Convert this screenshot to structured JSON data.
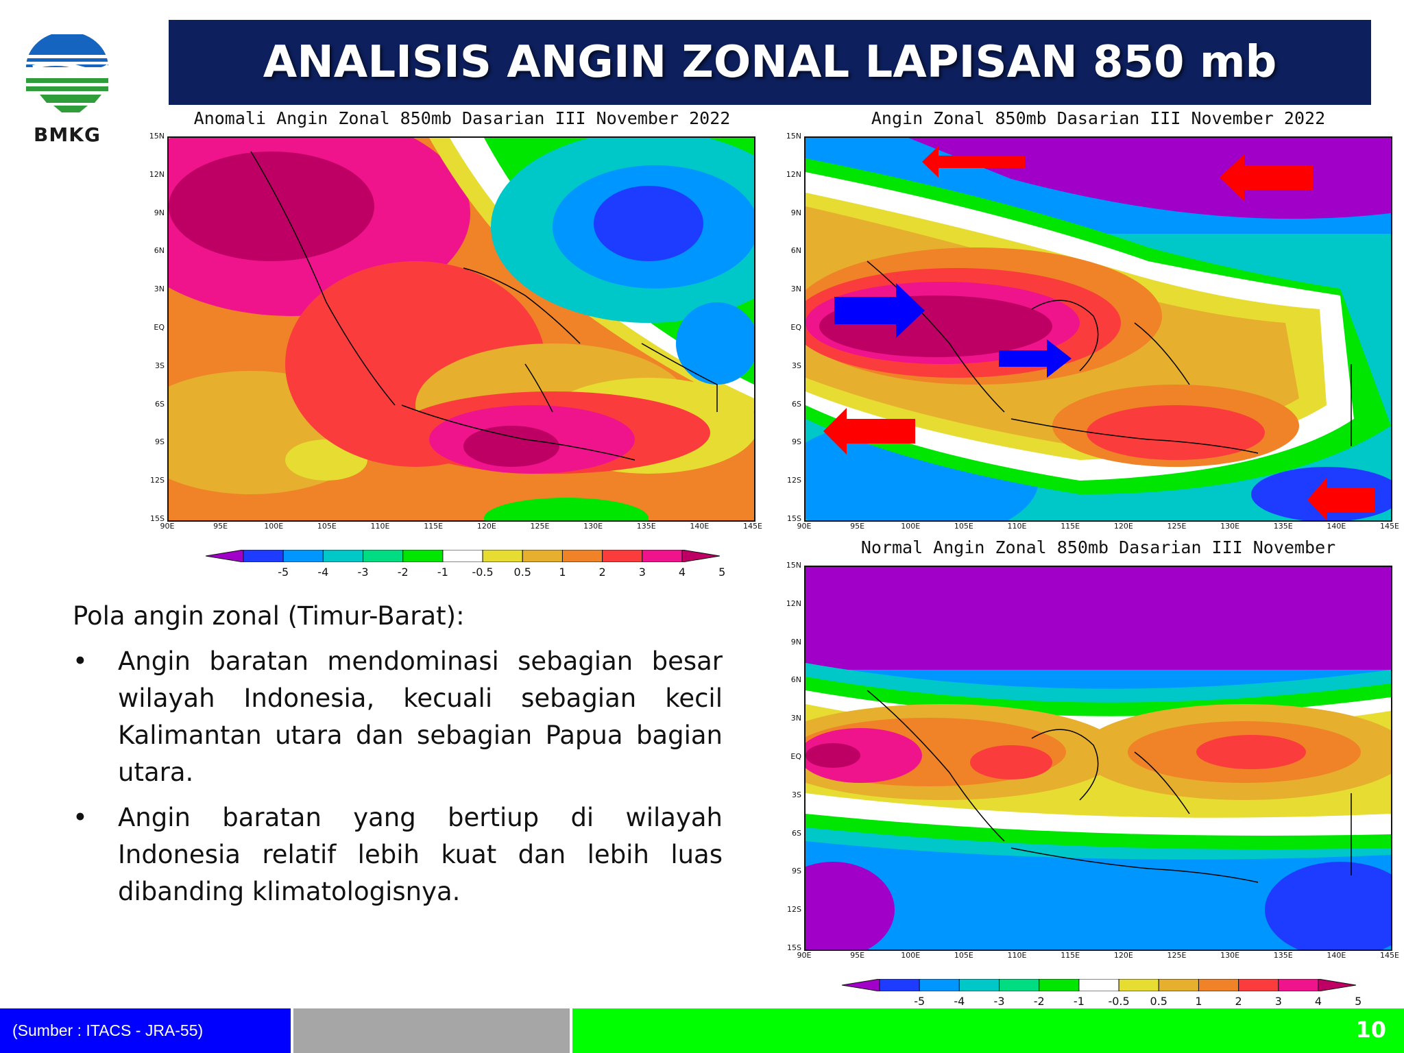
{
  "header": {
    "logo_text": "BMKG",
    "title": "ANALISIS ANGIN ZONAL LAPISAN 850 mb"
  },
  "maps": {
    "anomaly_title": "Anomali Angin Zonal 850mb Dasarian III November 2022",
    "actual_title": "Angin Zonal 850mb Dasarian III November 2022",
    "normal_title": "Normal Angin Zonal 850mb Dasarian III November",
    "lat_ticks": [
      "15N",
      "12N",
      "9N",
      "6N",
      "3N",
      "EQ",
      "3S",
      "6S",
      "9S",
      "12S",
      "15S"
    ],
    "lon_ticks": [
      "90E",
      "95E",
      "100E",
      "105E",
      "110E",
      "115E",
      "120E",
      "125E",
      "130E",
      "135E",
      "140E",
      "145E"
    ],
    "colorbar_labels": [
      "-5",
      "-4",
      "-3",
      "-2",
      "-1",
      "-0.5",
      "0.5",
      "1",
      "2",
      "3",
      "4",
      "5"
    ],
    "colorbar_colors": [
      "#a000c8",
      "#1e3cff",
      "#0096ff",
      "#00c8c8",
      "#00dc82",
      "#00e600",
      "#ffffff",
      "#e6dc32",
      "#e6af2d",
      "#f08228",
      "#fa3c3c",
      "#f0148c",
      "#be0064"
    ]
  },
  "text": {
    "intro": "Pola angin zonal (Timur-Barat):",
    "bullets": [
      "Angin baratan mendominasi sebagian besar wilayah Indonesia, kecuali sebagian kecil Kalimantan utara dan sebagian Papua bagian utara.",
      "Angin baratan yang bertiup di wilayah Indonesia relatif lebih kuat dan lebih luas dibanding klimatologisnya."
    ],
    "bullet_char": "•"
  },
  "footer": {
    "source": "(Sumber : ITACS - JRA-55)",
    "page_number": "10"
  }
}
